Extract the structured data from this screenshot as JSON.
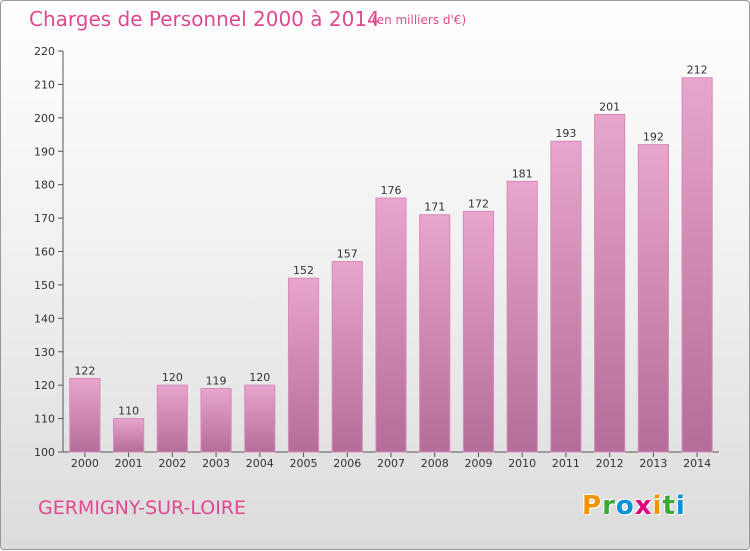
{
  "title": "Charges de Personnel 2000 à 2014",
  "subtitle": "(en milliers d'€)",
  "commune": "GERMIGNY-SUR-LOIRE",
  "logo": {
    "letters": [
      "P",
      "r",
      "o",
      "x",
      "i",
      "t",
      "i"
    ],
    "colors": [
      "#f29400",
      "#3aa935",
      "#0094d7",
      "#e2007a",
      "#f29400",
      "#3aa935",
      "#0094d7"
    ]
  },
  "colors": {
    "title": "#e1488f",
    "bar_top": "#e8a5cd",
    "bar_bottom": "#b46d98",
    "bar_edge": "#d78cb8"
  },
  "chart_data": {
    "type": "bar",
    "categories": [
      "2000",
      "2001",
      "2002",
      "2003",
      "2004",
      "2005",
      "2006",
      "2007",
      "2008",
      "2009",
      "2010",
      "2011",
      "2012",
      "2013",
      "2014"
    ],
    "values": [
      122,
      110,
      120,
      119,
      120,
      152,
      157,
      176,
      171,
      172,
      181,
      193,
      201,
      192,
      212
    ],
    "ylim": [
      100,
      220
    ],
    "yticks": [
      100,
      110,
      120,
      130,
      140,
      150,
      160,
      170,
      180,
      190,
      200,
      210,
      220
    ],
    "grid": false,
    "data_labels": true
  }
}
